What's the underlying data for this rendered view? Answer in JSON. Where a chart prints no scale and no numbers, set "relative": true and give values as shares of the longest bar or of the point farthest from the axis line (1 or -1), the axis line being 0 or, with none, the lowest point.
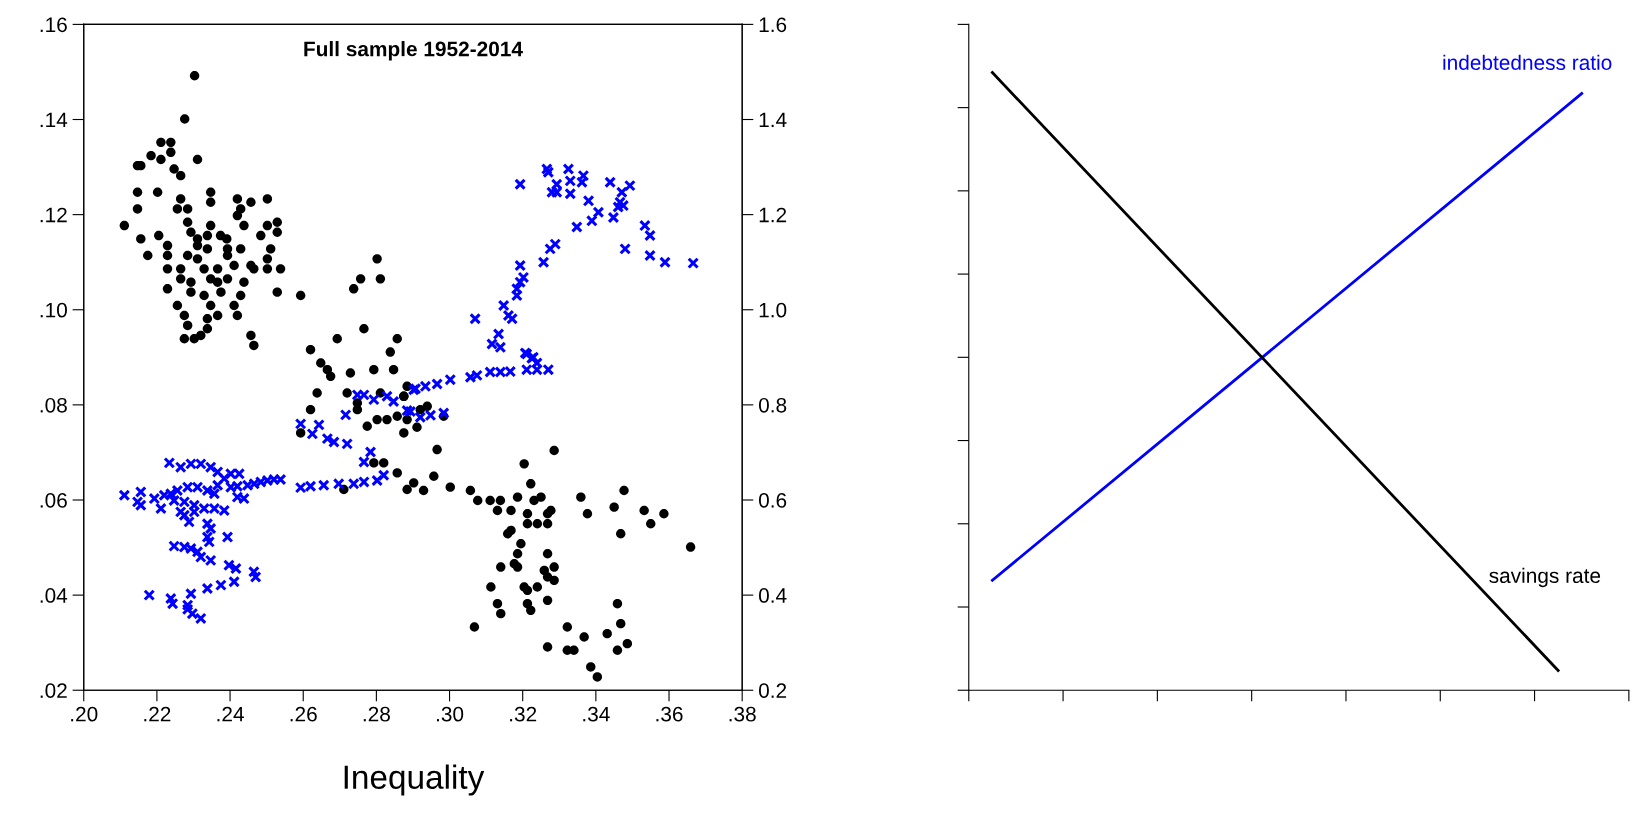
{
  "chart_data": [
    {
      "type": "scatter",
      "title": "Full sample 1952-2014",
      "xlabel": "Inequality",
      "grid": false,
      "xlim": [
        0.2,
        0.38
      ],
      "xticks": [
        {
          "value": 0.2,
          "label": ".20"
        },
        {
          "value": 0.22,
          "label": ".22"
        },
        {
          "value": 0.24,
          "label": ".24"
        },
        {
          "value": 0.26,
          "label": ".26"
        },
        {
          "value": 0.28,
          "label": ".28"
        },
        {
          "value": 0.3,
          "label": ".30"
        },
        {
          "value": 0.32,
          "label": ".32"
        },
        {
          "value": 0.34,
          "label": ".34"
        },
        {
          "value": 0.36,
          "label": ".36"
        },
        {
          "value": 0.38,
          "label": ".38"
        }
      ],
      "ylim": [
        0.02,
        0.16
      ],
      "yticks": [
        {
          "value": 0.02,
          "label": ".02"
        },
        {
          "value": 0.04,
          "label": ".04"
        },
        {
          "value": 0.06,
          "label": ".06"
        },
        {
          "value": 0.08,
          "label": ".08"
        },
        {
          "value": 0.1,
          "label": ".10"
        },
        {
          "value": 0.12,
          "label": ".12"
        },
        {
          "value": 0.14,
          "label": ".14"
        },
        {
          "value": 0.16,
          "label": ".16"
        }
      ],
      "y2lim": [
        0.2,
        1.6
      ],
      "y2ticks": [
        {
          "value": 0.2,
          "label": "0.2"
        },
        {
          "value": 0.4,
          "label": "0.4"
        },
        {
          "value": 0.6,
          "label": "0.6"
        },
        {
          "value": 0.8,
          "label": "0.8"
        },
        {
          "value": 1.0,
          "label": "1.0"
        },
        {
          "value": 1.2,
          "label": "1.2"
        },
        {
          "value": 1.4,
          "label": "1.4"
        },
        {
          "value": 1.6,
          "label": "1.6"
        }
      ],
      "series": [
        {
          "color": "#000000",
          "marker": "circle",
          "x": [
            0.2303,
            0.2276,
            0.2211,
            0.2238,
            0.2184,
            0.2238,
            0.2211,
            0.2311,
            0.2147,
            0.2156,
            0.2247,
            0.2265,
            0.2147,
            0.2202,
            0.2147,
            0.2265,
            0.2256,
            0.2284,
            0.2347,
            0.2347,
            0.242,
            0.2457,
            0.2502,
            0.2429,
            0.242,
            0.2111,
            0.2156,
            0.2175,
            0.2284,
            0.2347,
            0.2438,
            0.2502,
            0.2529,
            0.2529,
            0.2484,
            0.2205,
            0.2229,
            0.2293,
            0.2311,
            0.2338,
            0.2374,
            0.2391,
            0.2229,
            0.2284,
            0.2311,
            0.2338,
            0.2393,
            0.2393,
            0.2429,
            0.2511,
            0.2502,
            0.2229,
            0.2265,
            0.2311,
            0.2329,
            0.2366,
            0.2411,
            0.2457,
            0.2465,
            0.2502,
            0.2538,
            0.2265,
            0.2293,
            0.2347,
            0.2366,
            0.2393,
            0.2438,
            0.2229,
            0.2293,
            0.2329,
            0.2375,
            0.2429,
            0.2529,
            0.2593,
            0.2256,
            0.2347,
            0.2411,
            0.2275,
            0.2366,
            0.242,
            0.2284,
            0.2338,
            0.2338,
            0.2275,
            0.2302,
            0.232,
            0.2457,
            0.2465,
            0.2802,
            0.2811,
            0.2757,
            0.2738,
            0.2766,
            0.2693,
            0.2857,
            0.2838,
            0.262,
            0.2648,
            0.2666,
            0.2675,
            0.2729,
            0.2793,
            0.2847,
            0.2638,
            0.272,
            0.262,
            0.2593,
            0.2748,
            0.2811,
            0.2875,
            0.2775,
            0.2802,
            0.2829,
            0.2875,
            0.2793,
            0.282,
            0.2857,
            0.2711,
            0.2884,
            0.2902,
            0.2748,
            0.2857,
            0.2884,
            0.2875,
            0.2884,
            0.2911,
            0.292,
            0.2939,
            0.2984,
            0.2966,
            0.2957,
            0.2929,
            0.3002,
            0.3057,
            0.3077,
            0.3111,
            0.3139,
            0.3131,
            0.3168,
            0.3186,
            0.3213,
            0.3213,
            0.324,
            0.3268,
            0.3268,
            0.3277,
            0.3231,
            0.325,
            0.3222,
            0.3204,
            0.3286,
            0.3159,
            0.3168,
            0.3195,
            0.3186,
            0.3177,
            0.3186,
            0.314,
            0.3268,
            0.3286,
            0.3259,
            0.3268,
            0.3286,
            0.3113,
            0.3204,
            0.3213,
            0.324,
            0.3131,
            0.314,
            0.3213,
            0.3222,
            0.3268,
            0.3068,
            0.3322,
            0.3368,
            0.3268,
            0.3322,
            0.334,
            0.3386,
            0.3404,
            0.3431,
            0.3459,
            0.3486,
            0.3468,
            0.3459,
            0.3359,
            0.3377,
            0.345,
            0.3477,
            0.3468,
            0.3532,
            0.355,
            0.3586,
            0.3659
          ],
          "values": [
            0.1492,
            0.1401,
            0.1352,
            0.1352,
            0.1324,
            0.1331,
            0.1316,
            0.1316,
            0.1303,
            0.1303,
            0.1296,
            0.1282,
            0.1247,
            0.1247,
            0.1212,
            0.1233,
            0.1212,
            0.1212,
            0.1247,
            0.1226,
            0.1233,
            0.1226,
            0.1233,
            0.1212,
            0.1198,
            0.1177,
            0.1149,
            0.1114,
            0.1184,
            0.1177,
            0.1177,
            0.1177,
            0.1184,
            0.1163,
            0.1156,
            0.1156,
            0.1135,
            0.1163,
            0.1149,
            0.1156,
            0.1156,
            0.1149,
            0.1114,
            0.1114,
            0.1135,
            0.1128,
            0.1128,
            0.1114,
            0.1128,
            0.1128,
            0.1107,
            0.1086,
            0.1086,
            0.1107,
            0.1086,
            0.1086,
            0.1093,
            0.1093,
            0.1086,
            0.1086,
            0.1086,
            0.1065,
            0.1058,
            0.1065,
            0.1058,
            0.1065,
            0.1058,
            0.1044,
            0.1037,
            0.103,
            0.1037,
            0.103,
            0.1037,
            0.103,
            0.1009,
            0.1009,
            0.1009,
            0.0988,
            0.0988,
            0.0988,
            0.0967,
            0.0981,
            0.096,
            0.0939,
            0.0939,
            0.0946,
            0.0946,
            0.0925,
            0.1107,
            0.1065,
            0.1065,
            0.1044,
            0.096,
            0.0939,
            0.0939,
            0.0911,
            0.0916,
            0.0888,
            0.0874,
            0.086,
            0.0867,
            0.0874,
            0.0874,
            0.0825,
            0.0825,
            0.079,
            0.0741,
            0.079,
            0.0825,
            0.0818,
            0.0755,
            0.0769,
            0.0769,
            0.0741,
            0.0678,
            0.0678,
            0.0657,
            0.0622,
            0.0622,
            0.0636,
            0.0804,
            0.0776,
            0.0839,
            0.0818,
            0.0769,
            0.0753,
            0.079,
            0.0797,
            0.0776,
            0.0706,
            0.065,
            0.062,
            0.0627,
            0.062,
            0.0599,
            0.0599,
            0.0599,
            0.0578,
            0.0578,
            0.0606,
            0.0571,
            0.055,
            0.055,
            0.055,
            0.0571,
            0.0578,
            0.0599,
            0.0606,
            0.0634,
            0.0676,
            0.0704,
            0.0529,
            0.0536,
            0.0508,
            0.0487,
            0.0466,
            0.0459,
            0.0459,
            0.0487,
            0.0459,
            0.0452,
            0.0438,
            0.0431,
            0.0417,
            0.0417,
            0.041,
            0.0417,
            0.0382,
            0.0361,
            0.0382,
            0.0368,
            0.0389,
            0.0333,
            0.0333,
            0.0312,
            0.0291,
            0.0284,
            0.0284,
            0.0249,
            0.0228,
            0.0319,
            0.0284,
            0.0298,
            0.034,
            0.0382,
            0.0606,
            0.0571,
            0.0585,
            0.062,
            0.0529,
            0.0578,
            0.055,
            0.0571,
            0.0501
          ]
        },
        {
          "color": "#0000ff",
          "marker": "cross",
          "axis": "y2",
          "x": [
            0.3193,
            0.3266,
            0.327,
            0.3325,
            0.333,
            0.3293,
            0.328,
            0.3293,
            0.333,
            0.3366,
            0.3362,
            0.3439,
            0.3493,
            0.3471,
            0.3466,
            0.3475,
            0.3461,
            0.338,
            0.3407,
            0.3389,
            0.3448,
            0.3348,
            0.3534,
            0.3548,
            0.348,
            0.3548,
            0.3589,
            0.3666,
            0.3289,
            0.3275,
            0.3257,
            0.3193,
            0.3202,
            0.3193,
            0.3184,
            0.3184,
            0.3148,
            0.3161,
            0.3171,
            0.307,
            0.3134,
            0.3116,
            0.3139,
            0.3211,
            0.3229,
            0.3207,
            0.3225,
            0.3239,
            0.3211,
            0.3239,
            0.327,
            0.3166,
            0.3139,
            0.3111,
            0.3075,
            0.3057,
            0.3002,
            0.2966,
            0.2934,
            0.2907,
            0.2884,
            0.292,
            0.2948,
            0.2984,
            0.2593,
            0.2625,
            0.2643,
            0.2666,
            0.2684,
            0.272,
            0.2716,
            0.2748,
            0.2766,
            0.2793,
            0.2829,
            0.2902,
            0.2847,
            0.2893,
            0.2784,
            0.2766,
            0.282,
            0.2802,
            0.2766,
            0.2738,
            0.2697,
            0.2656,
            0.262,
            0.2593,
            0.2538,
            0.252,
            0.2502,
            0.2484,
            0.2466,
            0.2448,
            0.2425,
            0.242,
            0.2402,
            0.2384,
            0.2366,
            0.2347,
            0.232,
            0.2293,
            0.2265,
            0.2234,
            0.2366,
            0.2402,
            0.242,
            0.2438,
            0.2384,
            0.2357,
            0.2338,
            0.2311,
            0.2284,
            0.2256,
            0.2238,
            0.222,
            0.2193,
            0.2156,
            0.2147,
            0.2111,
            0.2156,
            0.2211,
            0.2247,
            0.2275,
            0.2302,
            0.2329,
            0.2357,
            0.2265,
            0.2302,
            0.2275,
            0.2288,
            0.2338,
            0.2347,
            0.2338,
            0.2343,
            0.2393,
            0.2247,
            0.2275,
            0.2293,
            0.2311,
            0.232,
            0.2347,
            0.2397,
            0.2416,
            0.2465,
            0.247,
            0.2411,
            0.2375,
            0.2338,
            0.2293,
            0.2238,
            0.2243,
            0.2179,
            0.2284,
            0.2284,
            0.2297,
            0.232
          ],
          "values": [
            1.264,
            1.296,
            1.289,
            1.296,
            1.271,
            1.264,
            1.247,
            1.247,
            1.244,
            1.282,
            1.268,
            1.268,
            1.261,
            1.247,
            1.226,
            1.219,
            1.216,
            1.229,
            1.205,
            1.187,
            1.194,
            1.174,
            1.177,
            1.156,
            1.128,
            1.114,
            1.1,
            1.098,
            1.138,
            1.128,
            1.1,
            1.093,
            1.068,
            1.058,
            1.044,
            1.03,
            1.009,
            0.988,
            0.981,
            0.981,
            0.949,
            0.928,
            0.921,
            0.907,
            0.9,
            0.909,
            0.898,
            0.888,
            0.874,
            0.874,
            0.874,
            0.87,
            0.869,
            0.869,
            0.862,
            0.858,
            0.853,
            0.844,
            0.839,
            0.834,
            0.788,
            0.774,
            0.778,
            0.783,
            0.76,
            0.739,
            0.758,
            0.729,
            0.722,
            0.718,
            0.779,
            0.821,
            0.821,
            0.811,
            0.818,
            0.832,
            0.807,
            0.786,
            0.701,
            0.68,
            0.652,
            0.641,
            0.638,
            0.634,
            0.634,
            0.631,
            0.629,
            0.626,
            0.643,
            0.643,
            0.641,
            0.638,
            0.634,
            0.631,
            0.655,
            0.629,
            0.655,
            0.645,
            0.659,
            0.669,
            0.676,
            0.676,
            0.669,
            0.678,
            0.631,
            0.627,
            0.606,
            0.603,
            0.578,
            0.613,
            0.62,
            0.627,
            0.627,
            0.62,
            0.613,
            0.61,
            0.603,
            0.617,
            0.596,
            0.61,
            0.589,
            0.582,
            0.599,
            0.596,
            0.589,
            0.582,
            0.582,
            0.575,
            0.575,
            0.568,
            0.554,
            0.55,
            0.54,
            0.522,
            0.512,
            0.522,
            0.503,
            0.501,
            0.498,
            0.491,
            0.48,
            0.473,
            0.463,
            0.456,
            0.449,
            0.438,
            0.428,
            0.421,
            0.414,
            0.403,
            0.393,
            0.382,
            0.4,
            0.379,
            0.37,
            0.361,
            0.351
          ]
        }
      ]
    },
    {
      "type": "line",
      "relative": true,
      "tick_labels": false,
      "grid": false,
      "categories": [
        null,
        null,
        null,
        null,
        null,
        null,
        null,
        null,
        null,
        null,
        null,
        null,
        null,
        null,
        null,
        null,
        null,
        null,
        null,
        null,
        null,
        null,
        null,
        null,
        null,
        null,
        null,
        null,
        null
      ],
      "series": [
        {
          "name": "indebtedness ratio",
          "color": "#0000ff",
          "values": [
            null,
            0.178,
            null,
            null,
            null,
            null,
            null,
            null,
            null,
            null,
            null,
            null,
            null,
            null,
            null,
            null,
            null,
            null,
            null,
            null,
            null,
            null,
            null,
            null,
            null,
            null,
            0.966,
            null,
            null
          ]
        },
        {
          "name": "savings rate",
          "color": "#000000",
          "values": [
            null,
            1,
            null,
            null,
            null,
            null,
            null,
            null,
            null,
            null,
            null,
            null,
            null,
            null,
            null,
            null,
            null,
            null,
            null,
            null,
            null,
            null,
            null,
            null,
            null,
            0.032,
            null,
            null,
            null
          ]
        }
      ]
    }
  ]
}
